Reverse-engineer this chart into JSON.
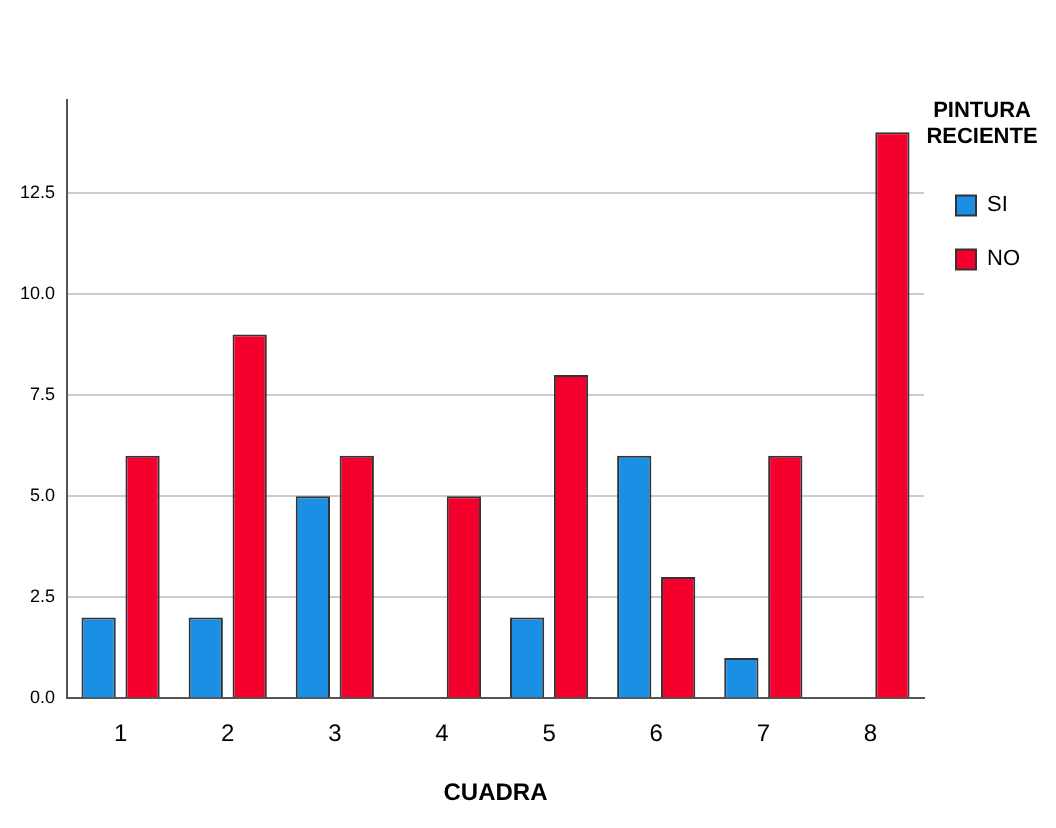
{
  "chart_data": {
    "type": "bar",
    "xlabel": "CUADRA",
    "legend_title": "PINTURA RECIENTE",
    "categories": [
      "1",
      "2",
      "3",
      "4",
      "5",
      "6",
      "7",
      "8"
    ],
    "series": [
      {
        "name": "SI",
        "color": "#1a8fe3",
        "values": [
          2,
          2,
          5,
          null,
          2,
          6,
          1,
          null
        ]
      },
      {
        "name": "NO",
        "color": "#f5002d",
        "values": [
          6,
          9,
          6,
          5,
          8,
          3,
          6,
          14
        ]
      }
    ],
    "ylim": [
      0,
      14.8
    ],
    "yticks": [
      {
        "value": 0,
        "label": "0.0"
      },
      {
        "value": 2.5,
        "label": "2.5"
      },
      {
        "value": 5,
        "label": "5.0"
      },
      {
        "value": 7.5,
        "label": "7.5"
      },
      {
        "value": 10,
        "label": "10.0"
      },
      {
        "value": 12.5,
        "label": "12.5"
      }
    ],
    "grid": "y",
    "legend": "top right"
  }
}
